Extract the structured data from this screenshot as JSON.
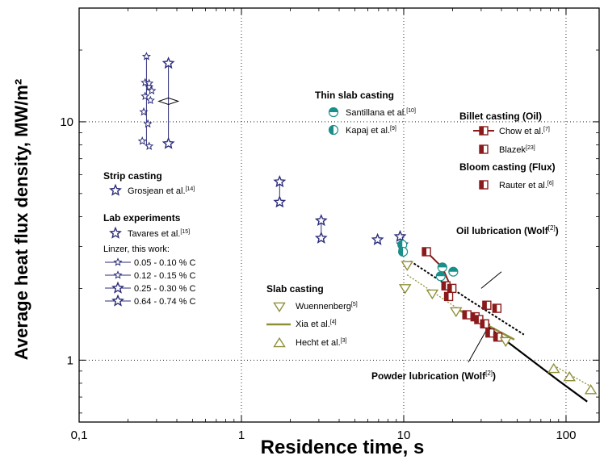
{
  "chart_data": {
    "type": "scatter",
    "x_scale": "log",
    "y_scale": "log",
    "xlim": [
      0.1,
      160
    ],
    "ylim": [
      0.55,
      30
    ],
    "xlabel": "Residence time, s",
    "ylabel": "Average heat flux density, MW/m²",
    "x_ticks": [
      {
        "value": 0.1,
        "label": "0,1"
      },
      {
        "value": 1,
        "label": "1"
      },
      {
        "value": 10,
        "label": "10"
      },
      {
        "value": 100,
        "label": "100"
      }
    ],
    "y_ticks": [
      {
        "value": 1,
        "label": "1"
      },
      {
        "value": 10,
        "label": "10"
      }
    ],
    "grid": true,
    "groups": {
      "strip": "Strip casting",
      "lab": "Lab experiments",
      "linzer": "Linzer, this work:",
      "thin": "Thin slab casting",
      "billet": "Billet casting (Oil)",
      "bloom": "Bloom casting (Flux)",
      "slab": "Slab casting"
    },
    "legend_entries": [
      {
        "id": "grosjean",
        "text": "Grosjean et al.",
        "ref": "[14]"
      },
      {
        "id": "tavares",
        "text": "Tavares et al.",
        "ref": "[15]"
      },
      {
        "id": "l1",
        "text": "0.05 - 0.10 % C",
        "ref": ""
      },
      {
        "id": "l2",
        "text": "0.12 - 0.15 % C",
        "ref": ""
      },
      {
        "id": "l3",
        "text": "0.25 - 0.30 % C",
        "ref": ""
      },
      {
        "id": "l4",
        "text": "0.64 - 0.74 % C",
        "ref": ""
      },
      {
        "id": "santillana",
        "text": "Santillana et al.",
        "ref": "[10]"
      },
      {
        "id": "kapaj",
        "text": "Kapaj et al.",
        "ref": "[9]"
      },
      {
        "id": "chow",
        "text": "Chow et al.",
        "ref": "[7]"
      },
      {
        "id": "blazek",
        "text": "Blazek",
        "ref": "[23]"
      },
      {
        "id": "rauter",
        "text": "Rauter et al.",
        "ref": "[6]"
      },
      {
        "id": "wuennenberg",
        "text": "Wuennenberg",
        "ref": "[5]"
      },
      {
        "id": "xia",
        "text": "Xia et al.",
        "ref": "[4]"
      },
      {
        "id": "hecht",
        "text": "Hecht et al.",
        "ref": "[3]"
      }
    ],
    "annotations": [
      {
        "id": "oil",
        "text": "Oil lubrication (Wolf",
        "ref": "[2]",
        "close": ")"
      },
      {
        "id": "powder",
        "text": "Powder lubrication (Wolf",
        "ref": "[2]",
        "close": ")"
      }
    ],
    "colors": {
      "navy": "#2b2b7a",
      "teal": "#1a8f8a",
      "darkred": "#8b1a1a",
      "olive": "#8f8f3a",
      "black": "#000000"
    },
    "series": [
      {
        "id": "grosjean_pts",
        "marker": "star",
        "color": "#2b2b7a",
        "points": [
          [
            1.72,
            5.6
          ],
          [
            1.72,
            4.6
          ],
          [
            3.1,
            3.85
          ],
          [
            3.1,
            3.25
          ]
        ]
      },
      {
        "id": "tavares_pts",
        "marker": "star",
        "color": "#2b2b7a",
        "points": [
          [
            6.9,
            3.2
          ],
          [
            9.5,
            3.3
          ],
          [
            9.8,
            3.05
          ]
        ]
      },
      {
        "id": "linzer_1",
        "marker": "star_small",
        "color": "#2b2b7a",
        "points": [
          [
            0.26,
            18.8
          ],
          [
            0.255,
            14.6
          ],
          [
            0.25,
            11.0
          ],
          [
            0.245,
            8.3
          ],
          [
            0.27,
            14.0
          ],
          [
            0.265,
            9.8
          ]
        ]
      },
      {
        "id": "linzer_2",
        "marker": "star_small",
        "color": "#2b2b7a",
        "points": [
          [
            0.27,
            14.5
          ],
          [
            0.275,
            12.3
          ],
          [
            0.28,
            13.5
          ],
          [
            0.27,
            7.9
          ],
          [
            0.255,
            12.8
          ]
        ]
      },
      {
        "id": "linzer_4",
        "marker": "star",
        "color": "#2b2b7a",
        "points": [
          [
            0.355,
            17.6
          ],
          [
            0.355,
            8.1
          ]
        ]
      },
      {
        "id": "santillana_pts",
        "marker": "circle_half_top",
        "color": "#1a8f8a",
        "points": [
          [
            17.3,
            2.45
          ],
          [
            16.9,
            2.25
          ],
          [
            20.2,
            2.35
          ]
        ]
      },
      {
        "id": "kapaj_pts",
        "marker": "circle_half_left",
        "color": "#1a8f8a",
        "points": [
          [
            9.8,
            3.05
          ],
          [
            9.9,
            2.85
          ]
        ]
      },
      {
        "id": "chow_pts",
        "marker": "square_half",
        "color": "#8b1a1a",
        "points": [
          [
            13.8,
            2.85
          ],
          [
            18.2,
            2.05
          ],
          [
            19.8,
            2.0
          ],
          [
            18.9,
            1.85
          ]
        ]
      },
      {
        "id": "blazek_pts",
        "marker": "square_half",
        "color": "#8b1a1a",
        "points": [
          [
            24.5,
            1.55
          ],
          [
            27.5,
            1.52
          ],
          [
            29.0,
            1.48
          ],
          [
            32.5,
            1.7
          ],
          [
            37.5,
            1.65
          ],
          [
            31.5,
            1.42
          ],
          [
            34.0,
            1.3
          ],
          [
            38.0,
            1.25
          ]
        ]
      },
      {
        "id": "wuennenberg_pts",
        "marker": "tri_down",
        "color": "#8f8f3a",
        "points": [
          [
            10.5,
            2.5
          ],
          [
            10.2,
            2.0
          ],
          [
            15.0,
            1.9
          ],
          [
            21.0,
            1.6
          ],
          [
            42.5,
            1.2
          ]
        ]
      },
      {
        "id": "hecht_pts",
        "marker": "tri_up",
        "color": "#8f8f3a",
        "points": [
          [
            84,
            0.92
          ],
          [
            105,
            0.85
          ],
          [
            142,
            0.75
          ]
        ]
      }
    ],
    "lines": [
      {
        "id": "chow_line",
        "color": "#8b1a1a",
        "width": 2,
        "dash": "",
        "points": [
          [
            13.8,
            2.85
          ],
          [
            17.3,
            2.45
          ],
          [
            19.7,
            2.0
          ],
          [
            18.3,
            1.85
          ]
        ]
      },
      {
        "id": "wuenn_fit",
        "color": "#8f8f3a",
        "width": 1.3,
        "dash": "2,2",
        "points": [
          [
            10.5,
            2.28
          ],
          [
            20,
            1.7
          ],
          [
            45,
            1.2
          ]
        ]
      },
      {
        "id": "hecht_fit",
        "color": "#8f8f3a",
        "width": 1.3,
        "dash": "2,2",
        "points": [
          [
            84,
            0.95
          ],
          [
            145,
            0.77
          ]
        ]
      },
      {
        "id": "xia_line",
        "color": "#8f8f3a",
        "width": 2.5,
        "dash": "",
        "points": [
          [
            22,
            1.62
          ],
          [
            48,
            1.22
          ]
        ]
      },
      {
        "id": "oil_curve",
        "color": "#000000",
        "width": 2,
        "dash": "3,2",
        "points": [
          [
            11,
            2.6
          ],
          [
            25,
            1.8
          ],
          [
            55,
            1.28
          ]
        ]
      },
      {
        "id": "powder_curve",
        "color": "#000000",
        "width": 2.2,
        "dash": "",
        "points": [
          [
            28,
            1.5
          ],
          [
            90,
            0.82
          ],
          [
            135,
            0.67
          ]
        ]
      },
      {
        "id": "linzer_bar_1",
        "color": "#2b2b7a",
        "width": 1,
        "dash": "",
        "points": [
          [
            0.26,
            18.8
          ],
          [
            0.26,
            7.9
          ]
        ]
      },
      {
        "id": "linzer_bar_2",
        "color": "#2b2b7a",
        "width": 1,
        "dash": "",
        "points": [
          [
            0.355,
            17.6
          ],
          [
            0.355,
            8.1
          ]
        ]
      },
      {
        "id": "grosjean_bar_1",
        "color": "#2b2b7a",
        "width": 1,
        "dash": "",
        "points": [
          [
            1.72,
            5.6
          ],
          [
            1.72,
            4.6
          ]
        ]
      },
      {
        "id": "grosjean_bar_2",
        "color": "#2b2b7a",
        "width": 1,
        "dash": "",
        "points": [
          [
            3.1,
            3.85
          ],
          [
            3.1,
            3.25
          ]
        ]
      },
      {
        "id": "oil_leader",
        "color": "#000000",
        "width": 1,
        "dash": "",
        "points": [
          [
            30,
            2.0
          ],
          [
            40,
            2.35
          ]
        ]
      },
      {
        "id": "powder_leader",
        "color": "#000000",
        "width": 1,
        "dash": "",
        "points": [
          [
            34,
            1.42
          ],
          [
            25,
            0.98
          ]
        ]
      }
    ]
  }
}
